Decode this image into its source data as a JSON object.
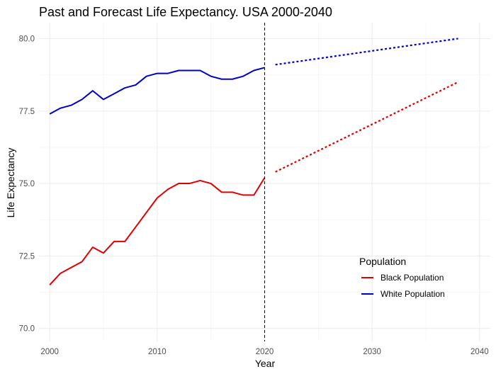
{
  "chart_data": {
    "type": "line",
    "title": "Past and Forecast Life Expectancy. USA 2000-2040",
    "xlabel": "Year",
    "ylabel": "Life Expectancy",
    "xlim": [
      1999,
      2041
    ],
    "ylim": [
      69.55,
      80.55
    ],
    "x_ticks": [
      2000,
      2010,
      2020,
      2030,
      2040
    ],
    "y_ticks": [
      70.0,
      72.5,
      75.0,
      77.5,
      80.0
    ],
    "x_tick_labels": [
      "2000",
      "2010",
      "2020",
      "2030",
      "2040"
    ],
    "y_tick_labels": [
      "70.0",
      "72.5",
      "75.0",
      "77.5",
      "80.0"
    ],
    "grid": true,
    "reference_line": {
      "x": 2020,
      "style": "dashed",
      "color": "#000000"
    },
    "legend": {
      "title": "Population",
      "placement": "bottom-right",
      "entries": [
        {
          "label": "Black Population",
          "color": "#e00000"
        },
        {
          "label": "White Population",
          "color": "#0000cc"
        }
      ]
    },
    "series": [
      {
        "name": "Black Population",
        "color": "#e00000",
        "style": "solid",
        "x": [
          2000,
          2001,
          2002,
          2003,
          2004,
          2005,
          2006,
          2007,
          2008,
          2009,
          2010,
          2011,
          2012,
          2013,
          2014,
          2015,
          2016,
          2017,
          2018,
          2019,
          2020
        ],
        "values": [
          71.5,
          71.9,
          72.1,
          72.3,
          72.8,
          72.6,
          73.0,
          73.0,
          73.5,
          74.0,
          74.5,
          74.8,
          75.0,
          75.0,
          75.1,
          75.0,
          74.7,
          74.7,
          74.6,
          74.6,
          75.2
        ]
      },
      {
        "name": "White Population",
        "color": "#0000cc",
        "style": "solid",
        "x": [
          2000,
          2001,
          2002,
          2003,
          2004,
          2005,
          2006,
          2007,
          2008,
          2009,
          2010,
          2011,
          2012,
          2013,
          2014,
          2015,
          2016,
          2017,
          2018,
          2019,
          2020
        ],
        "values": [
          77.4,
          77.6,
          77.7,
          77.9,
          78.2,
          77.9,
          78.1,
          78.3,
          78.4,
          78.7,
          78.8,
          78.8,
          78.9,
          78.9,
          78.9,
          78.7,
          78.6,
          78.6,
          78.7,
          78.9,
          79.0
        ]
      },
      {
        "name": "Black Population",
        "color": "#e00000",
        "style": "dotted",
        "x": [
          2021,
          2038
        ],
        "values": [
          75.4,
          78.5
        ]
      },
      {
        "name": "White Population",
        "color": "#0000cc",
        "style": "dotted",
        "x": [
          2021,
          2038
        ],
        "values": [
          79.1,
          80.0
        ]
      }
    ]
  }
}
